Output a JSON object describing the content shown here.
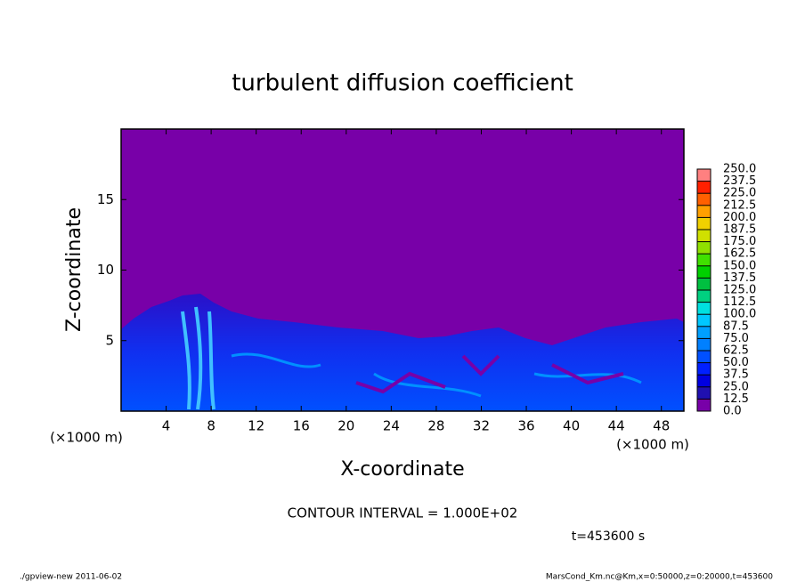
{
  "chart_data": {
    "type": "contour",
    "title": "turbulent diffusion coefficient",
    "xlabel": "X-coordinate",
    "ylabel": "Z-coordinate",
    "x_multiplier": "(×1000 m)",
    "y_multiplier": "(×1000 m)",
    "xlim": [
      0,
      50
    ],
    "ylim": [
      0,
      20
    ],
    "xticks": [
      4,
      8,
      12,
      16,
      20,
      24,
      28,
      32,
      36,
      40,
      44,
      48
    ],
    "yticks": [
      5,
      10,
      15
    ],
    "colorbar": {
      "lim": [
        0,
        250
      ],
      "ticks": [
        {
          "value": 0,
          "label": "0.0"
        },
        12.5,
        {
          "value": 25,
          "label": "25.0"
        },
        37.5,
        {
          "value": 50,
          "label": "50.0"
        },
        62.5,
        {
          "value": 75,
          "label": "75.0"
        },
        87.5,
        {
          "value": 100,
          "label": "100.0"
        },
        112.5,
        {
          "value": 125,
          "label": "125.0"
        },
        137.5,
        {
          "value": 150,
          "label": "150.0"
        },
        162.5,
        {
          "value": 175,
          "label": "175.0"
        },
        187.5,
        {
          "value": 200,
          "label": "200.0"
        },
        212.5,
        {
          "value": 225,
          "label": "225.0"
        },
        237.5,
        {
          "value": 250,
          "label": "250.0"
        }
      ],
      "colors": [
        "#7800a8",
        "#2010b0",
        "#0000e0",
        "#0020ff",
        "#0050ff",
        "#0080ff",
        "#00a0ff",
        "#00c8ff",
        "#00e0e0",
        "#00d080",
        "#00c040",
        "#00d000",
        "#40e000",
        "#90e000",
        "#d0e000",
        "#f0d000",
        "#ffa000",
        "#ff6000",
        "#ff2000",
        "#ff8080"
      ]
    },
    "contour_interval": "CONTOUR INTERVAL = 1.000E+02",
    "time_label": "t=453600 s",
    "footer_left": "./gpview-new  2011-06-02",
    "footer_right": "MarsCond_Km.nc@Km,x=0:50000,z=0:20000,t=453600"
  }
}
